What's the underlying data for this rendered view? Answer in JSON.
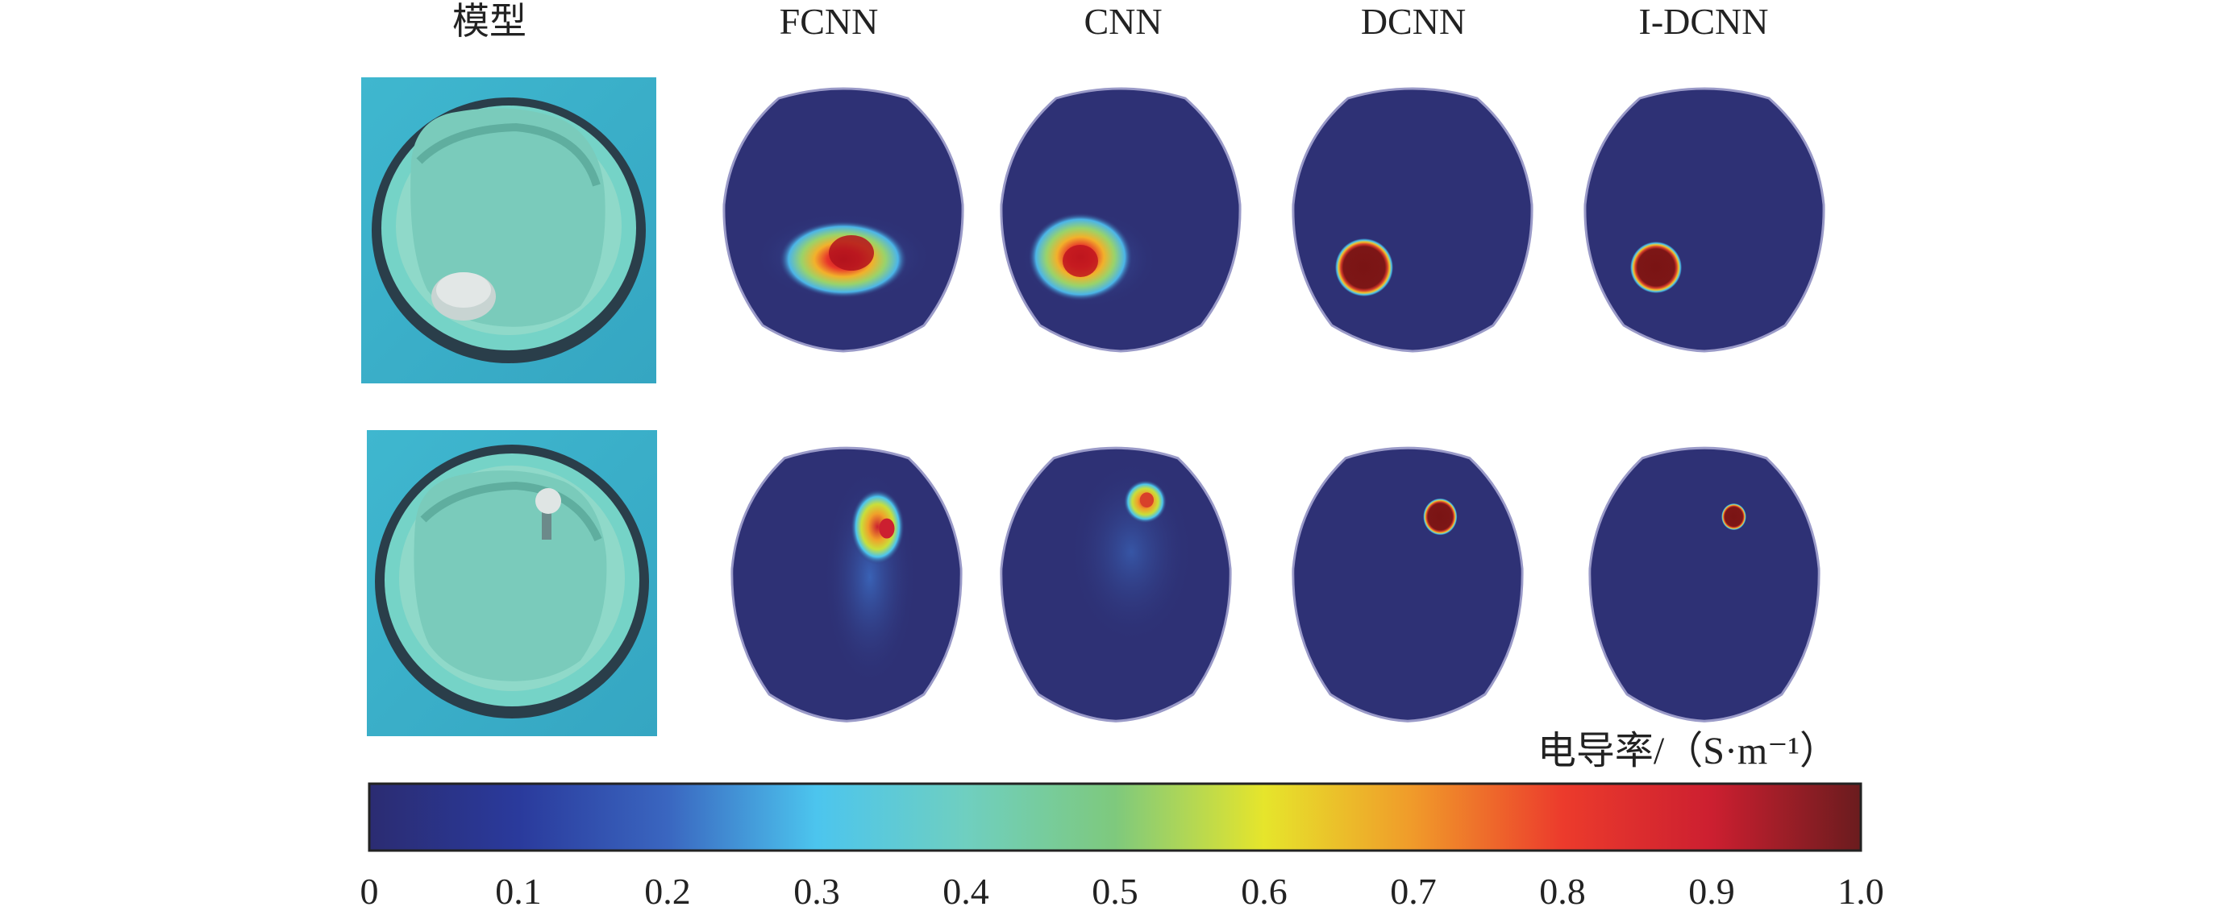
{
  "columns": [
    "模型",
    "FCNN",
    "CNN",
    "DCNN",
    "I-DCNN"
  ],
  "rows": [
    {
      "cells": [
        "model-photo",
        "FCNN",
        "CNN",
        "DCNN",
        "I-DCNN"
      ]
    },
    {
      "cells": [
        "model-photo",
        "FCNN",
        "CNN",
        "DCNN",
        "I-DCNN"
      ]
    }
  ],
  "colorbar": {
    "label": "电导率/（S·m⁻¹）",
    "colormap": "jet",
    "min": 0,
    "max": 1.0,
    "ticks": [
      "0",
      "0.1",
      "0.2",
      "0.3",
      "0.4",
      "0.5",
      "0.6",
      "0.7",
      "0.8",
      "0.9",
      "1.0"
    ],
    "background_color": "#2e3175"
  }
}
